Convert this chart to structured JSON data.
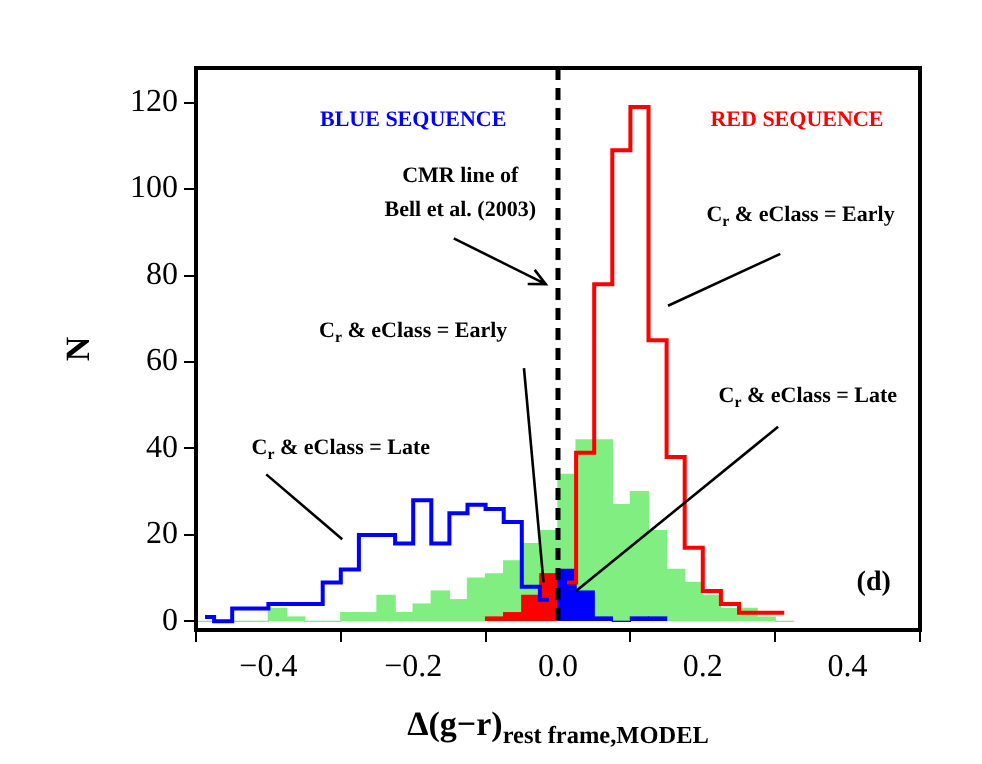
{
  "chart_data": {
    "type": "histogram",
    "xlabel": "Δ(g−r)$_{rest frame,MODEL}$",
    "ylabel": "N",
    "bins": [
      -0.5,
      -0.475,
      -0.45,
      -0.425,
      -0.4,
      -0.375,
      -0.35,
      -0.325,
      -0.3,
      -0.275,
      -0.25,
      -0.225,
      -0.2,
      -0.175,
      -0.15,
      -0.125,
      -0.1,
      -0.075,
      -0.05,
      -0.025,
      0,
      0.025,
      0.05,
      0.075,
      0.1,
      0.125,
      0.15,
      0.175,
      0.2,
      0.225,
      0.25,
      0.275,
      0.3,
      0.325
    ],
    "series": [
      {
        "color": "#80ee80",
        "values": [
          0,
          0,
          0,
          0,
          3,
          1,
          0,
          0,
          2,
          2,
          6,
          2,
          4,
          7,
          5,
          10,
          11,
          14,
          18,
          21,
          34,
          42,
          42,
          27,
          30,
          21,
          12,
          9,
          6,
          3,
          3,
          1,
          0
        ]
      },
      {
        "color": "#ff0000",
        "values": [
          null,
          null,
          null,
          null,
          null,
          null,
          null,
          null,
          null,
          null,
          null,
          null,
          null,
          null,
          null,
          null,
          1,
          2,
          6,
          11,
          null,
          null,
          null,
          null,
          null,
          null,
          null,
          null,
          null,
          null,
          null,
          null,
          null
        ]
      },
      {
        "color": "#0000ff",
        "values": [
          null,
          null,
          null,
          null,
          null,
          null,
          null,
          null,
          null,
          null,
          null,
          null,
          null,
          null,
          null,
          null,
          null,
          null,
          null,
          null,
          12,
          7,
          1,
          0,
          1,
          1,
          null,
          null,
          null,
          null,
          null,
          null,
          null
        ]
      },
      {
        "type": "step",
        "color": "#0000ff",
        "x": [
          -0.4875,
          -0.4625,
          -0.4375,
          -0.4125,
          -0.3875,
          -0.3625,
          -0.3375,
          -0.3125,
          -0.2875,
          -0.2625,
          -0.2375,
          -0.2125,
          -0.1875,
          -0.1625,
          -0.1375,
          -0.1125,
          -0.0875,
          -0.0625,
          -0.0375,
          -0.0125
        ],
        "values": [
          1,
          0,
          3,
          3,
          4,
          4,
          4,
          9,
          12,
          20,
          20,
          18,
          28,
          18,
          25,
          27,
          26,
          23,
          8,
          5
        ]
      },
      {
        "type": "step",
        "color": "#ff0000",
        "x": [
          0.0125,
          0.0375,
          0.0625,
          0.0875,
          0.1125,
          0.1375,
          0.1625,
          0.1875,
          0.2125,
          0.2375,
          0.2625,
          0.2875,
          0.3125
        ],
        "values": [
          9,
          39,
          78,
          109,
          119,
          65,
          38,
          17,
          7,
          4,
          2,
          2,
          2
        ]
      }
    ],
    "xlim": [
      -0.5,
      0.5
    ],
    "xticks": [
      {
        "value": -0.4,
        "label": "−0.4"
      },
      {
        "value": -0.2,
        "label": "−0.2"
      },
      {
        "value": 0,
        "label": "0.0"
      },
      {
        "value": 0.2,
        "label": "0.2"
      },
      {
        "value": 0.4,
        "label": "0.4"
      }
    ],
    "ylim": [
      -2,
      128
    ],
    "yticks": [
      0,
      20,
      40,
      60,
      80,
      100,
      120
    ],
    "ref_lines": [
      {
        "axis": "x",
        "value": 0,
        "color": "#000000",
        "line_style": "dashed"
      }
    ],
    "annotations": [
      "BLUE SEQUENCE",
      "RED SEQUENCE",
      "CMR line of\nBell et al. (2003)",
      {
        "text": "C$_{r}$ & eClass = Early",
        "x": -0.02,
        "y": 9
      },
      "C$_{r}$ & eClass = Early",
      "C$_{r}$ & eClass = Late",
      {
        "text": "C$_{r}$ & eClass = Late",
        "x": 0.025,
        "y": 7
      },
      "(d)"
    ],
    "grid": false,
    "legend": false
  }
}
